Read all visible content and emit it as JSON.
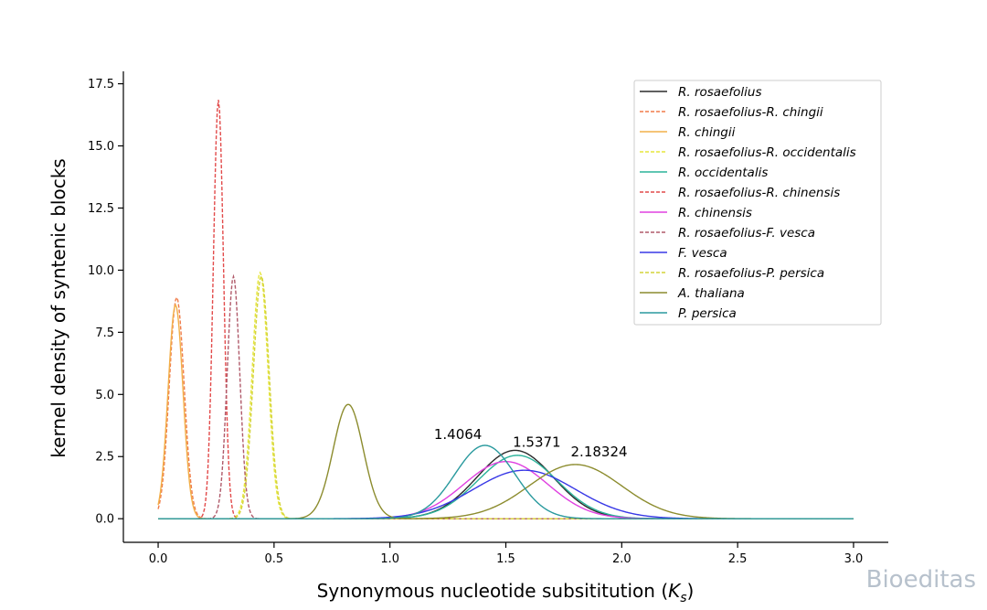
{
  "chart_data": {
    "type": "line",
    "title": "",
    "xlabel": "Synonymous nucleotide subsititution (",
    "xlabel_symbol": "K",
    "xlabel_sub": "s",
    "xlabel_end": ")",
    "ylabel": "kernel density of syntenic blocks",
    "xlim": [
      -0.15,
      3.15
    ],
    "ylim": [
      -0.95,
      18.0
    ],
    "x_ticks": [
      0.0,
      0.5,
      1.0,
      1.5,
      2.0,
      2.5,
      3.0
    ],
    "x_tick_labels": [
      "0.0",
      "0.5",
      "1.0",
      "1.5",
      "2.0",
      "2.5",
      "3.0"
    ],
    "y_ticks": [
      0.0,
      2.5,
      5.0,
      7.5,
      10.0,
      12.5,
      15.0,
      17.5
    ],
    "y_tick_labels": [
      "0.0",
      "2.5",
      "5.0",
      "7.5",
      "10.0",
      "12.5",
      "15.0",
      "17.5"
    ],
    "grid": false,
    "legend_position": "top-right",
    "x_range": [
      0.0,
      3.0
    ],
    "series": [
      {
        "name": "R. rosaefolius",
        "color": "#2b2b2b",
        "dash": false,
        "peak_x": 1.54,
        "peak_y": 2.75,
        "sigma": 0.165
      },
      {
        "name": "R. rosaefolius-R. chingii",
        "color": "#f07c4a",
        "dash": true,
        "peak_x": 0.08,
        "peak_y": 8.9,
        "sigma": 0.032
      },
      {
        "name": "R. chingii",
        "color": "#f2b04a",
        "dash": false,
        "peak_x": 0.075,
        "peak_y": 8.6,
        "sigma": 0.032
      },
      {
        "name": "R. rosaefolius-R. occidentalis",
        "color": "#e6e63c",
        "dash": true,
        "peak_x": 0.44,
        "peak_y": 9.9,
        "sigma": 0.034
      },
      {
        "name": "R. occidentalis",
        "color": "#2bb39a",
        "dash": false,
        "peak_x": 1.55,
        "peak_y": 2.55,
        "sigma": 0.17
      },
      {
        "name": "R. rosaefolius-R. chinensis",
        "color": "#e24a4a",
        "dash": true,
        "peak_x": 0.26,
        "peak_y": 16.85,
        "sigma": 0.022
      },
      {
        "name": "R. chinensis",
        "color": "#e040e0",
        "dash": false,
        "peak_x": 1.5,
        "peak_y": 2.3,
        "sigma": 0.18
      },
      {
        "name": "R. rosaefolius-F. vesca",
        "color": "#b05a6a",
        "dash": true,
        "peak_x": 0.325,
        "peak_y": 9.75,
        "sigma": 0.027
      },
      {
        "name": "F. vesca",
        "color": "#3838e6",
        "dash": false,
        "peak_x": 1.58,
        "peak_y": 1.95,
        "sigma": 0.22
      },
      {
        "name": "R. rosaefolius-P. persica",
        "color": "#d4d43a",
        "dash": true,
        "peak_x": 0.445,
        "peak_y": 9.75,
        "sigma": 0.034
      },
      {
        "name": "A. thaliana",
        "color": "#8c8c2e",
        "dash": false,
        "peaks": [
          {
            "x": 0.82,
            "y": 4.6,
            "sigma": 0.065
          },
          {
            "x": 1.8,
            "y": 2.18,
            "sigma": 0.2
          }
        ]
      },
      {
        "name": "P. persica",
        "color": "#2a9a9e",
        "dash": false,
        "peak_x": 1.41,
        "peak_y": 2.95,
        "sigma": 0.13
      }
    ],
    "annotations": [
      {
        "text": "1.4064",
        "x": 1.19,
        "y": 3.2
      },
      {
        "text": "1.5371",
        "x": 1.53,
        "y": 2.9
      },
      {
        "text": "2.18324",
        "x": 1.78,
        "y": 2.5
      }
    ]
  },
  "watermark": "Bioeditas"
}
